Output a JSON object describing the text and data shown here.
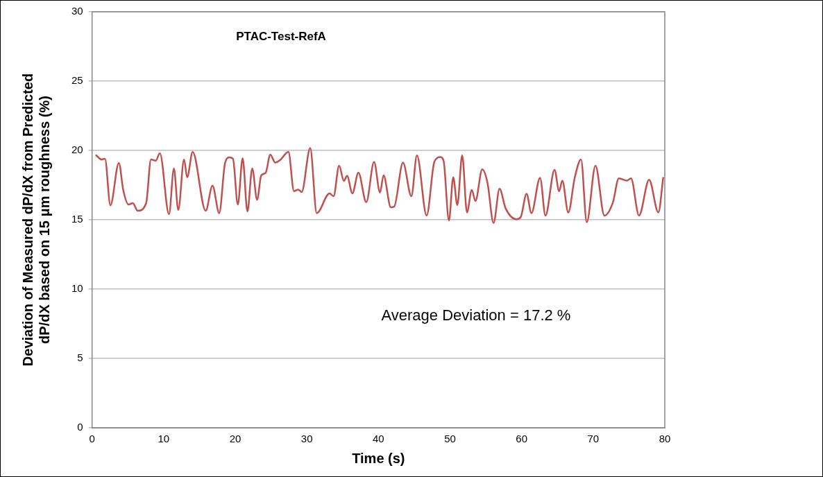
{
  "chart_data": {
    "type": "line",
    "title": "PTAC-Test-RefA",
    "xlabel": "Time (s)",
    "ylabel": "Deviation of Measured dP/dX from Predicted dP/dX based on 15 μm roughness (%)",
    "annotations": [
      "Average Deviation = 17.2 %"
    ],
    "xlim": [
      0,
      80
    ],
    "xticks": [
      0,
      10,
      20,
      30,
      40,
      50,
      60,
      70,
      80
    ],
    "ylim": [
      0,
      30
    ],
    "yticks": [
      0,
      5,
      10,
      15,
      20,
      25,
      30
    ],
    "grid": "y",
    "legend": false,
    "marker": "none",
    "line_style": "solid",
    "series": [
      {
        "color": "#c0504d",
        "x": [
          0.58,
          1.3,
          1.8,
          2.56,
          3.74,
          4.35,
          5.09,
          5.7,
          6.37,
          7.55,
          8.23,
          8.9,
          9.47,
          10.75,
          11.43,
          12.04,
          12.85,
          13.28,
          14.05,
          15.87,
          16.82,
          17.76,
          18.57,
          19.18,
          19.68,
          20.36,
          21.03,
          21.7,
          22.37,
          23.05,
          23.63,
          24.24,
          24.9,
          25.58,
          26.25,
          27.43,
          28.2,
          28.78,
          29.28,
          30.47,
          31.38,
          33.17,
          33.74,
          34.5,
          35.18,
          35.62,
          36.36,
          37.2,
          38.3,
          39.39,
          40.22,
          40.72,
          41.73,
          42.2,
          43.43,
          44.6,
          45.38,
          46.73,
          47.81,
          48.66,
          49.1,
          49.85,
          50.45,
          51.02,
          51.7,
          52.37,
          53.04,
          53.55,
          54.5,
          55.23,
          56.08,
          56.92,
          57.76,
          59.28,
          59.88,
          60.69,
          61.37,
          62.58,
          63.33,
          64.6,
          65.24,
          65.68,
          66.52,
          67.43,
          68.3,
          69.1,
          70.32,
          71.56,
          72.74,
          73.58,
          74.7,
          75.28,
          76.4,
          77.81,
          79.1,
          79.78
        ],
        "values": [
          19.65,
          19.35,
          19.4,
          16.04,
          19.1,
          17.15,
          16.1,
          16.2,
          15.65,
          16.2,
          19.35,
          19.26,
          19.8,
          15.4,
          18.7,
          15.7,
          19.35,
          18.06,
          19.9,
          15.65,
          17.46,
          15.48,
          19.08,
          19.5,
          19.4,
          16.1,
          19.44,
          15.6,
          18.7,
          16.44,
          18.2,
          18.38,
          19.7,
          19.12,
          19.3,
          19.9,
          17.06,
          17.18,
          17.0,
          20.18,
          15.48,
          16.9,
          16.7,
          18.9,
          17.8,
          18.17,
          16.9,
          18.4,
          16.27,
          19.17,
          16.97,
          18.2,
          15.9,
          15.95,
          19.12,
          16.7,
          19.65,
          15.3,
          19.17,
          19.52,
          19.26,
          14.95,
          18.06,
          16.06,
          19.65,
          15.53,
          17.15,
          16.36,
          18.64,
          17.68,
          14.77,
          17.24,
          15.83,
          15.04,
          15.2,
          16.88,
          15.48,
          18.03,
          15.3,
          18.6,
          17.06,
          17.82,
          15.53,
          18.06,
          19.35,
          14.82,
          18.9,
          15.3,
          16.23,
          17.99,
          17.82,
          17.99,
          15.3,
          17.89,
          15.53,
          18.03
        ]
      }
    ]
  }
}
